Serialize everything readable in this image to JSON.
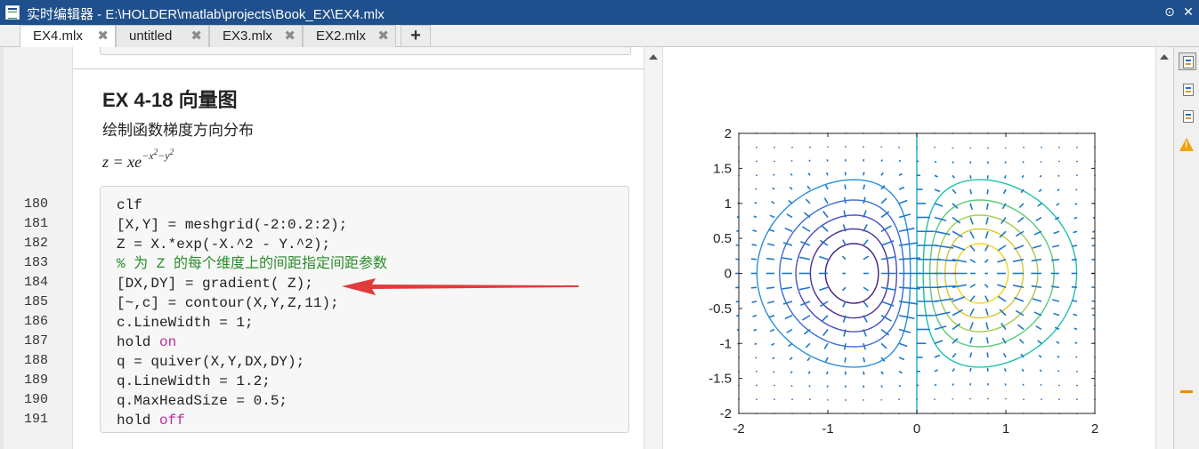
{
  "window": {
    "title": "实时编辑器 - E:\\HOLDER\\matlab\\projects\\Book_EX\\EX4.mlx",
    "colors": {
      "titlebar": "#1f4f8c",
      "arrow": "#e03c3c",
      "keyword": "#b8319a",
      "comment": "#2a8d2a",
      "quiver": "#1f77c8"
    }
  },
  "tabs": [
    {
      "label": "EX4.mlx",
      "active": true
    },
    {
      "label": "untitled",
      "active": false
    },
    {
      "label": "EX3.mlx",
      "active": false
    },
    {
      "label": "EX2.mlx",
      "active": false
    }
  ],
  "editor": {
    "heading": "EX 4-18 向量图",
    "subtext": "绘制函数梯度方向分布",
    "formula": {
      "lhs": "z = xe",
      "exp_prefix": "−x",
      "exp_sq1": "2",
      "exp_mid": "−y",
      "exp_sq2": "2"
    },
    "lines": [
      {
        "num": "180",
        "code": "clf"
      },
      {
        "num": "181",
        "code": "[X,Y] = meshgrid(-2:0.2:2);"
      },
      {
        "num": "182",
        "code": "Z = X.*exp(-X.^2 - Y.^2);"
      },
      {
        "num": "183",
        "code": "% 为 Z 的每个维度上的间距指定间距参数"
      },
      {
        "num": "184",
        "code": "[DX,DY] = gradient( Z);"
      },
      {
        "num": "185",
        "code": "[~,c] = contour(X,Y,Z,11);"
      },
      {
        "num": "186",
        "code": "c.LineWidth = 1;"
      },
      {
        "num": "187",
        "code": "hold ",
        "kw": "on"
      },
      {
        "num": "188",
        "code": "q = quiver(X,Y,DX,DY);"
      },
      {
        "num": "189",
        "code": "q.LineWidth = 1.2;"
      },
      {
        "num": "190",
        "code": "q.MaxHeadSize = 0.5;"
      },
      {
        "num": "191",
        "code": "hold ",
        "kw": "off"
      }
    ]
  },
  "chart_data": {
    "type": "contour+quiver",
    "function": "z = x*exp(-x^2-y^2)",
    "contour_levels": 11,
    "grid_step": 0.2,
    "xlim": [
      -2,
      2
    ],
    "ylim": [
      -2,
      2
    ],
    "xticks": [
      "-2",
      "-1",
      "0",
      "1",
      "2"
    ],
    "yticks": [
      "2",
      "1.5",
      "1",
      "0.5",
      "0",
      "-0.5",
      "-1",
      "-1.5",
      "-2"
    ],
    "grid": false
  },
  "icons": [
    "app-icon",
    "tab-close-icon",
    "add-tab-icon",
    "minimize-icon",
    "close-icon",
    "output-inline-icon",
    "output-right-icon",
    "text-view-icon",
    "warning-icon"
  ]
}
